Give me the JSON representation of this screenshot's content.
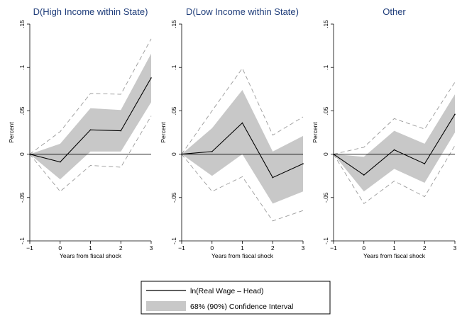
{
  "colors": {
    "band": "#c8c8c8",
    "line": "#000000",
    "dashed": "#9a9a9a",
    "title": "#1f3d7a"
  },
  "legend": {
    "line_label": "ln(Real Wage – Head)",
    "band_label": "68% (90%) Confidence Interval",
    "placement": "bottom-center"
  },
  "chart_data": [
    {
      "type": "line",
      "title": "D(High Income within State)",
      "xlabel": "Years from fiscal shock",
      "ylabel": "Percent",
      "x": [
        -1,
        0,
        1,
        2,
        3
      ],
      "xticks": [
        "−1",
        "0",
        "1",
        "2",
        "3"
      ],
      "ylim": [
        -0.1,
        0.15
      ],
      "yticks": [
        -0.1,
        -0.05,
        0,
        0.05,
        0.1,
        0.15
      ],
      "ytick_labels": [
        "-.1",
        "-.05",
        "0",
        ".05",
        ".1",
        ".15"
      ],
      "series": [
        {
          "name": "ln(Real Wage – Head)",
          "values": [
            0,
            -0.009,
            0.028,
            0.027,
            0.088
          ]
        }
      ],
      "band68": {
        "lower": [
          0,
          -0.029,
          0.003,
          0.003,
          0.06
        ],
        "upper": [
          0,
          0.012,
          0.053,
          0.051,
          0.116
        ]
      },
      "band90": {
        "lower": [
          0,
          -0.043,
          -0.013,
          -0.015,
          0.044
        ],
        "upper": [
          0,
          0.026,
          0.07,
          0.069,
          0.133
        ]
      }
    },
    {
      "type": "line",
      "title": "D(Low Income within State)",
      "xlabel": "Years from fiscal shock",
      "ylabel": "Percent",
      "x": [
        -1,
        0,
        1,
        2,
        3
      ],
      "xticks": [
        "−1",
        "0",
        "1",
        "2",
        "3"
      ],
      "ylim": [
        -0.1,
        0.15
      ],
      "yticks": [
        -0.1,
        -0.05,
        0,
        0.05,
        0.1,
        0.15
      ],
      "ytick_labels": [
        "-.1",
        "-.05",
        "0",
        ".05",
        ".1",
        ".15"
      ],
      "series": [
        {
          "name": "ln(Real Wage – Head)",
          "values": [
            0,
            0.003,
            0.036,
            -0.027,
            -0.011
          ]
        }
      ],
      "band68": {
        "lower": [
          0,
          -0.025,
          0.0,
          -0.057,
          -0.043
        ],
        "upper": [
          0,
          0.03,
          0.074,
          0.003,
          0.021
        ]
      },
      "band90": {
        "lower": [
          0,
          -0.043,
          -0.026,
          -0.077,
          -0.065
        ],
        "upper": [
          0,
          0.05,
          0.099,
          0.022,
          0.043
        ]
      }
    },
    {
      "type": "line",
      "title": "Other",
      "xlabel": "Years from fiscal shock",
      "ylabel": "Percent",
      "x": [
        -1,
        0,
        1,
        2,
        3
      ],
      "xticks": [
        "−1",
        "0",
        "1",
        "2",
        "3"
      ],
      "ylim": [
        -0.1,
        0.15
      ],
      "yticks": [
        -0.1,
        -0.05,
        0,
        0.05,
        0.1,
        0.15
      ],
      "ytick_labels": [
        "-.1",
        "-.05",
        "0",
        ".05",
        ".1",
        ".15"
      ],
      "series": [
        {
          "name": "ln(Real Wage – Head)",
          "values": [
            0,
            -0.024,
            0.005,
            -0.011,
            0.046
          ]
        }
      ],
      "band68": {
        "lower": [
          0,
          -0.043,
          -0.017,
          -0.033,
          0.025
        ],
        "upper": [
          0,
          -0.003,
          0.027,
          0.012,
          0.069
        ]
      },
      "band90": {
        "lower": [
          0,
          -0.057,
          -0.031,
          -0.049,
          0.01
        ],
        "upper": [
          0,
          0.008,
          0.041,
          0.029,
          0.083
        ]
      }
    }
  ]
}
